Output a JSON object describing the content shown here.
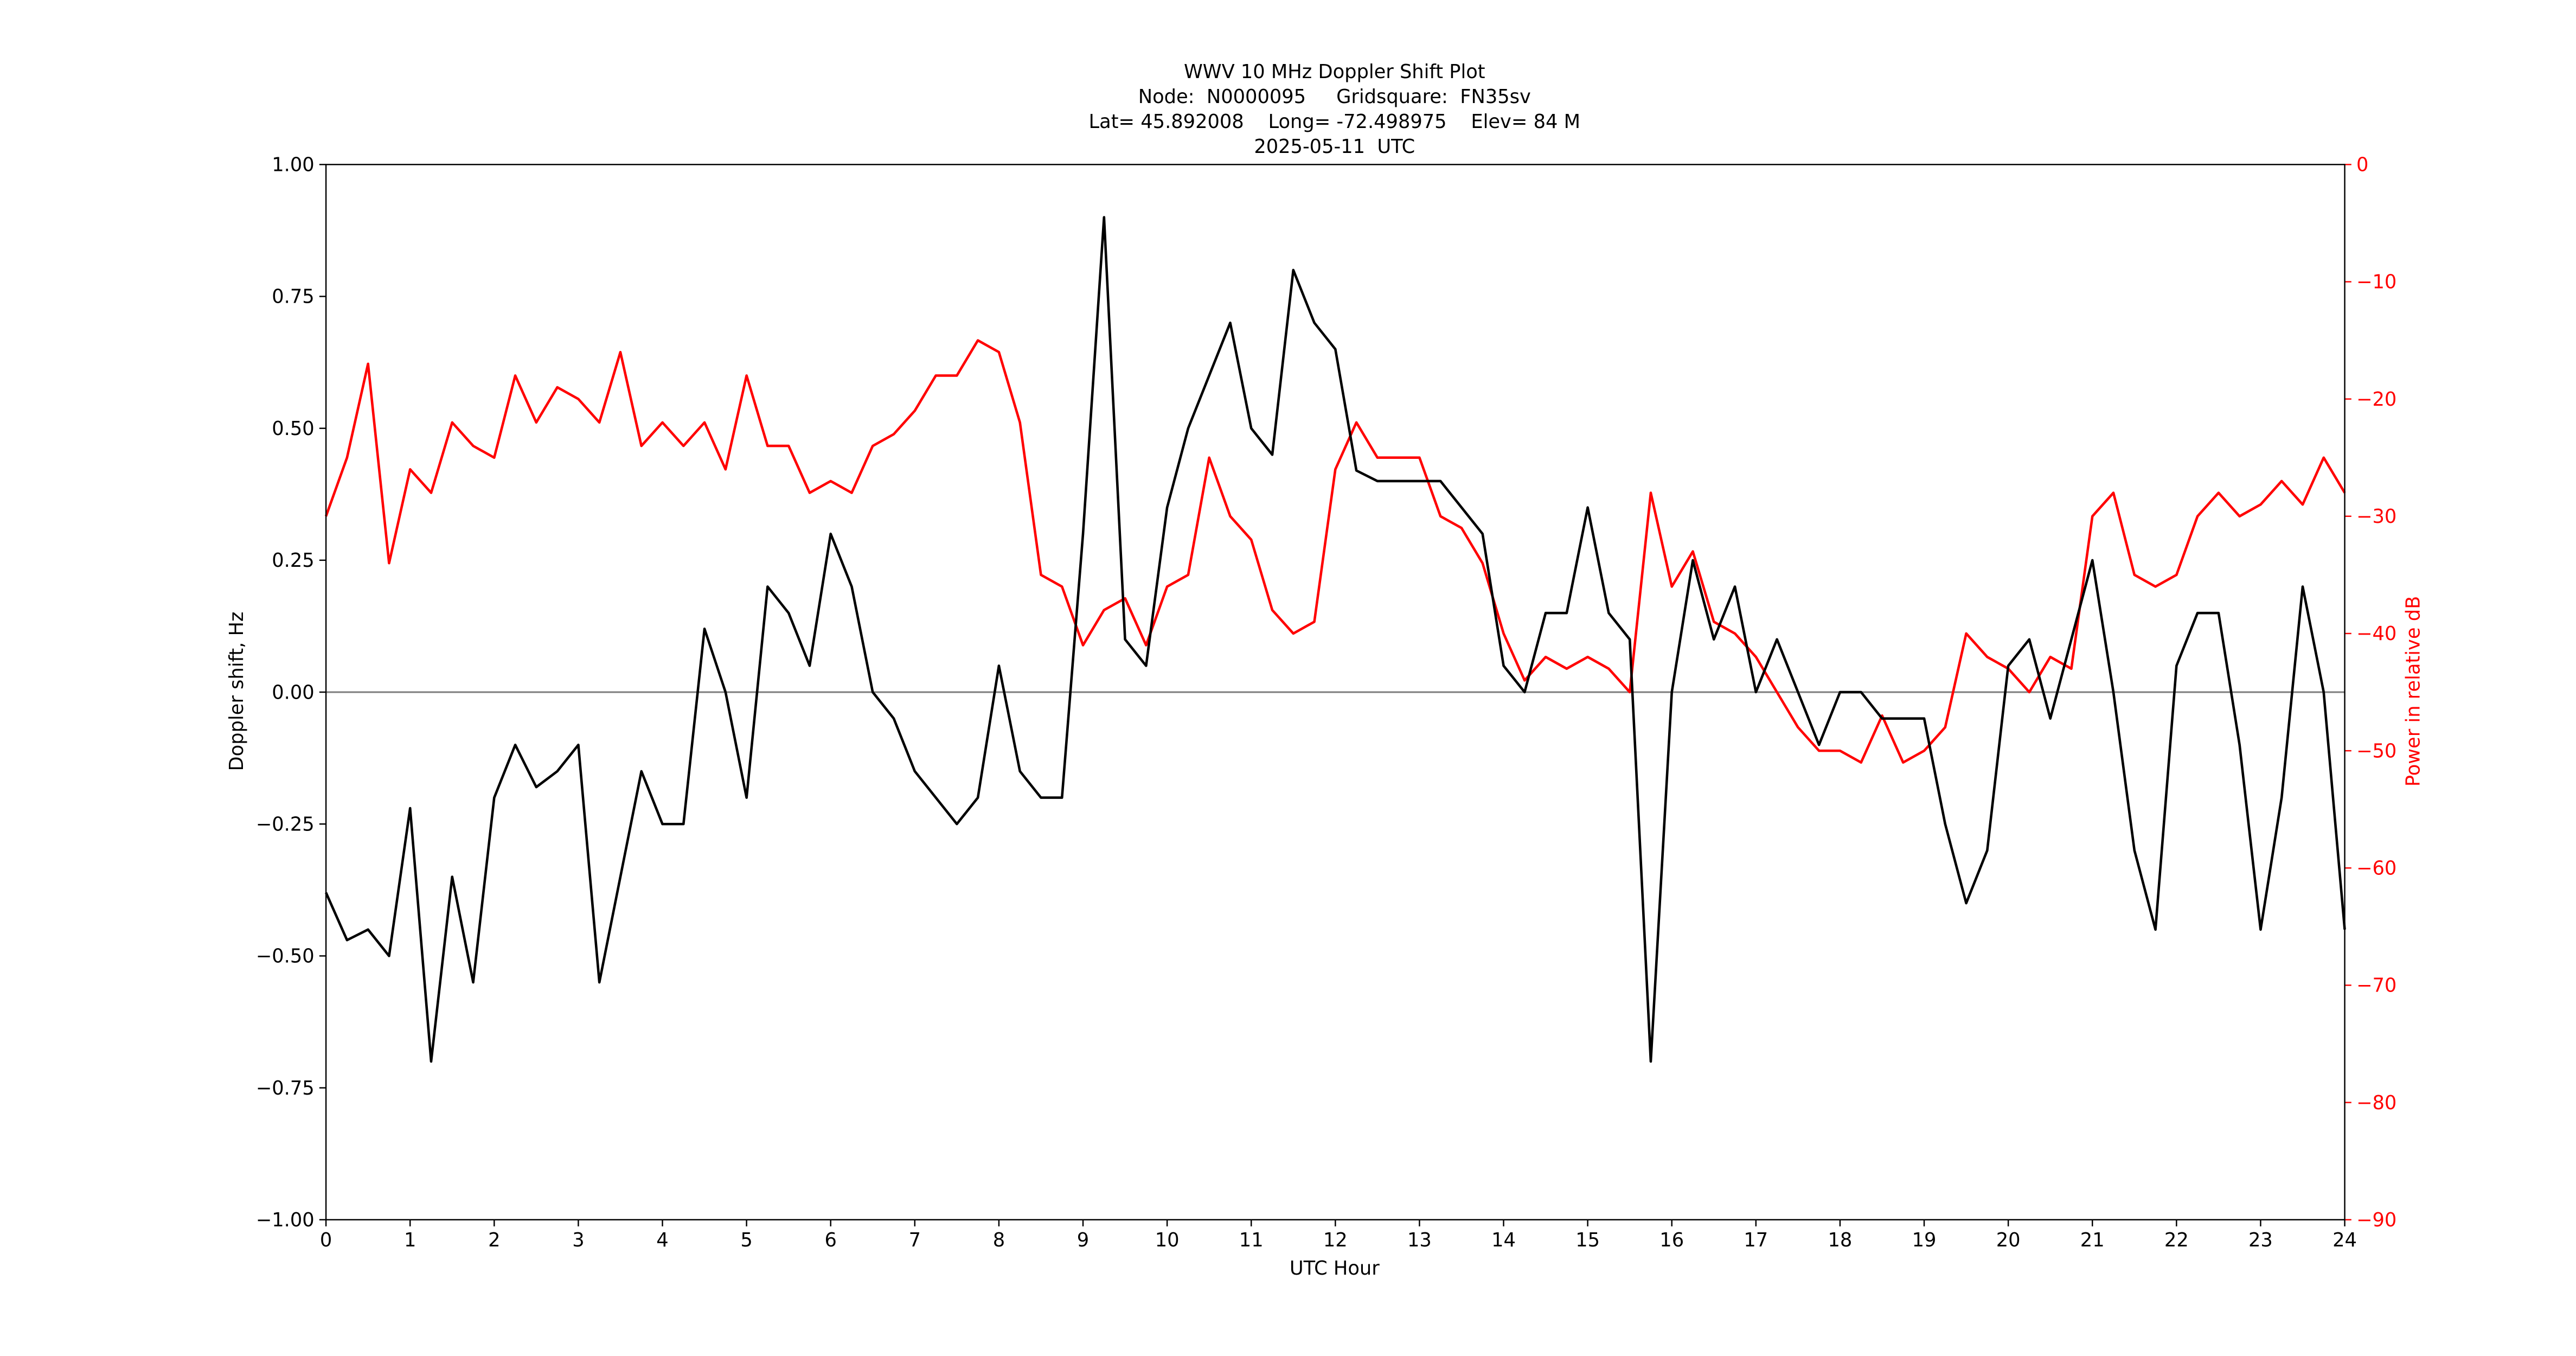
{
  "chart_data": {
    "type": "line",
    "title": [
      "WWV 10 MHz Doppler Shift Plot",
      "Node:  N0000095     Gridsquare:  FN35sv",
      "Lat= 45.892008    Long= -72.498975    Elev= 84 M",
      "2025-05-11  UTC"
    ],
    "xlabel": "UTC Hour",
    "ylabel": "Doppler shift, Hz",
    "y2label": "Power in relative dB",
    "x": [
      0,
      0.25,
      0.5,
      0.75,
      1,
      1.25,
      1.5,
      1.75,
      2,
      2.25,
      2.5,
      2.75,
      3,
      3.25,
      3.5,
      3.75,
      4,
      4.25,
      4.5,
      4.75,
      5,
      5.25,
      5.5,
      5.75,
      6,
      6.25,
      6.5,
      6.75,
      7,
      7.25,
      7.5,
      7.75,
      8,
      8.25,
      8.5,
      8.75,
      9,
      9.25,
      9.5,
      9.75,
      10,
      10.25,
      10.5,
      10.75,
      11,
      11.25,
      11.5,
      11.75,
      12,
      12.25,
      12.5,
      12.75,
      13,
      13.25,
      13.5,
      13.75,
      14,
      14.25,
      14.5,
      14.75,
      15,
      15.25,
      15.5,
      15.75,
      16,
      16.25,
      16.5,
      16.75,
      17,
      17.25,
      17.5,
      17.75,
      18,
      18.25,
      18.5,
      18.75,
      19,
      19.25,
      19.5,
      19.75,
      20,
      20.25,
      20.5,
      20.75,
      21,
      21.25,
      21.5,
      21.75,
      22,
      22.25,
      22.5,
      22.75,
      23,
      23.25,
      23.5,
      23.75,
      24
    ],
    "series": [
      {
        "name": "Doppler shift",
        "color": "#000000",
        "values": [
          -0.38,
          -0.47,
          -0.45,
          -0.5,
          -0.22,
          -0.7,
          -0.35,
          -0.55,
          -0.2,
          -0.1,
          -0.18,
          -0.15,
          -0.1,
          -0.55,
          -0.35,
          -0.15,
          -0.25,
          -0.25,
          0.12,
          0,
          -0.2,
          0.2,
          0.15,
          0.05,
          0.3,
          0.2,
          0,
          -0.05,
          -0.15,
          -0.2,
          -0.25,
          -0.2,
          0.05,
          -0.15,
          -0.2,
          -0.2,
          0.3,
          0.9,
          0.1,
          0.05,
          0.35,
          0.5,
          0.6,
          0.7,
          0.5,
          0.45,
          0.8,
          0.7,
          0.65,
          0.42,
          0.4,
          0.4,
          0.4,
          0.4,
          0.35,
          0.3,
          0.05,
          0,
          0.15,
          0.15,
          0.35,
          0.15,
          0.1,
          -0.7,
          0,
          0.25,
          0.1,
          0.2,
          0,
          0.1,
          0,
          -0.1,
          0,
          0,
          -0.05,
          -0.05,
          -0.05,
          -0.25,
          -0.4,
          -0.3,
          0.05,
          0.1,
          -0.05,
          0.1,
          0.25,
          0,
          -0.3,
          -0.45,
          0.05,
          0.15,
          0.15,
          -0.1,
          -0.45,
          -0.2,
          0.2,
          0,
          -0.45
        ]
      },
      {
        "name": "Power",
        "color": "#ff0000",
        "axis": "y2",
        "values": [
          -30,
          -25,
          -17,
          -34,
          -26,
          -28,
          -22,
          -24,
          -25,
          -18,
          -22,
          -19,
          -20,
          -22,
          -16,
          -24,
          -22,
          -24,
          -22,
          -26,
          -18,
          -24,
          -24,
          -28,
          -27,
          -28,
          -24,
          -23,
          -21,
          -18,
          -18,
          -15,
          -16,
          -22,
          -35,
          -36,
          -41,
          -38,
          -37,
          -41,
          -36,
          -35,
          -25,
          -30,
          -32,
          -38,
          -40,
          -39,
          -26,
          -22,
          -25,
          -25,
          -25,
          -30,
          -31,
          -34,
          -40,
          -44,
          -42,
          -43,
          -42,
          -43,
          -45,
          -28,
          -36,
          -33,
          -39,
          -40,
          -42,
          -45,
          -48,
          -50,
          -50,
          -51,
          -47,
          -51,
          -50,
          -48,
          -40,
          -42,
          -43,
          -45,
          -42,
          -43,
          -30,
          -28,
          -35,
          -36,
          -35,
          -30,
          -28,
          -30,
          -29,
          -27,
          -29,
          -25,
          -28
        ]
      }
    ],
    "xlim": [
      0,
      24
    ],
    "xticks": [
      0,
      1,
      2,
      3,
      4,
      5,
      6,
      7,
      8,
      9,
      10,
      11,
      12,
      13,
      14,
      15,
      16,
      17,
      18,
      19,
      20,
      21,
      22,
      23,
      24
    ],
    "ylim": [
      -1,
      1
    ],
    "yticks": [
      {
        "value": -1,
        "label": "−1.00"
      },
      {
        "value": -0.75,
        "label": "−0.75"
      },
      {
        "value": -0.5,
        "label": "−0.50"
      },
      {
        "value": -0.25,
        "label": "−0.25"
      },
      {
        "value": 0,
        "label": "0.00"
      },
      {
        "value": 0.25,
        "label": "0.25"
      },
      {
        "value": 0.5,
        "label": "0.50"
      },
      {
        "value": 0.75,
        "label": "0.75"
      },
      {
        "value": 1,
        "label": "1.00"
      }
    ],
    "y2lim": [
      -90,
      0
    ],
    "y2ticks": [
      {
        "value": -90,
        "label": "−90"
      },
      {
        "value": -80,
        "label": "−80"
      },
      {
        "value": -70,
        "label": "−70"
      },
      {
        "value": -60,
        "label": "−60"
      },
      {
        "value": -50,
        "label": "−50"
      },
      {
        "value": -40,
        "label": "−40"
      },
      {
        "value": -30,
        "label": "−30"
      },
      {
        "value": -20,
        "label": "−20"
      },
      {
        "value": -10,
        "label": "−10"
      },
      0
    ],
    "hline": 0,
    "hline_color": "#808080",
    "grid": false
  }
}
